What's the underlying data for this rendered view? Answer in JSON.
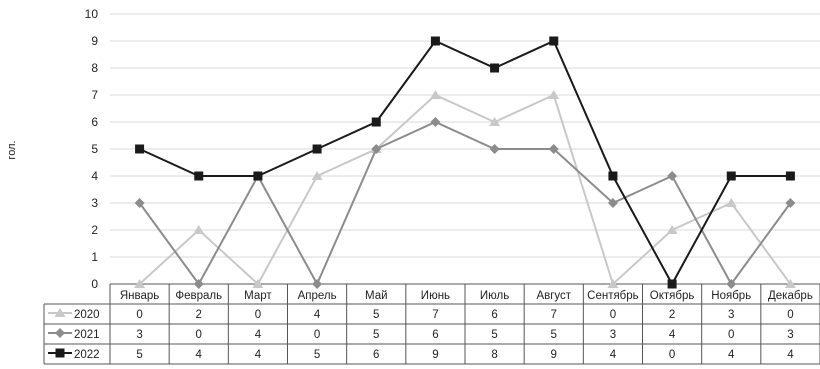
{
  "chart_data": {
    "type": "line",
    "title": "",
    "xlabel": "",
    "ylabel": "гол.",
    "ylim": [
      0,
      10
    ],
    "yticks": [
      0,
      1,
      2,
      3,
      4,
      5,
      6,
      7,
      8,
      9,
      10
    ],
    "grid": true,
    "legend": "data-table-left",
    "categories": [
      "Январь",
      "Февраль",
      "Март",
      "Апрель",
      "Май",
      "Июнь",
      "Июль",
      "Август",
      "Сентябрь",
      "Октябрь",
      "Ноябрь",
      "Декабрь"
    ],
    "series": [
      {
        "name": "2020",
        "values": [
          0,
          2,
          0,
          4,
          5,
          7,
          6,
          7,
          0,
          2,
          3,
          0
        ],
        "color": "#c8c8c8",
        "marker": "triangle"
      },
      {
        "name": "2021",
        "values": [
          3,
          0,
          4,
          0,
          5,
          6,
          5,
          5,
          3,
          4,
          0,
          3
        ],
        "color": "#8c8c8c",
        "marker": "diamond"
      },
      {
        "name": "2022",
        "values": [
          5,
          4,
          4,
          5,
          6,
          9,
          8,
          9,
          4,
          0,
          4,
          4
        ],
        "color": "#1a1a1a",
        "marker": "square"
      }
    ]
  }
}
